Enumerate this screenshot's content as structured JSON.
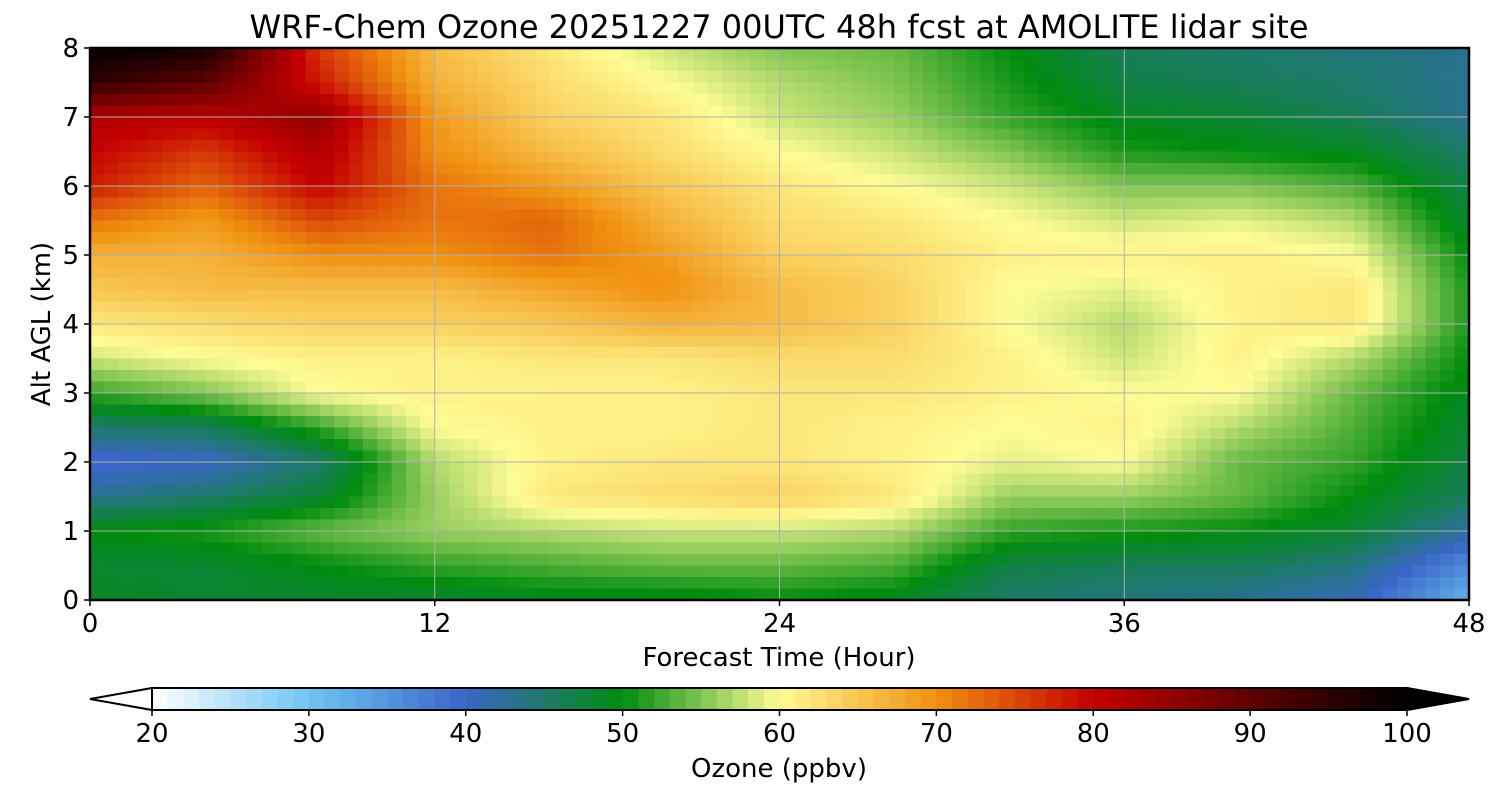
{
  "chart_data": {
    "type": "heatmap",
    "title": "WRF-Chem Ozone  20251227 00UTC 48h fcst at AMOLITE lidar site",
    "xlabel": "Forecast Time (Hour)",
    "ylabel": "Alt AGL (km)",
    "xlim": [
      0,
      48
    ],
    "ylim": [
      0,
      8
    ],
    "x_ticks": [
      0,
      12,
      24,
      36,
      48
    ],
    "y_ticks": [
      0,
      1,
      2,
      3,
      4,
      5,
      6,
      7,
      8
    ],
    "grid": true,
    "x": [
      0,
      4,
      8,
      12,
      16,
      20,
      24,
      28,
      32,
      36,
      40,
      44,
      48
    ],
    "y": [
      0,
      0.5,
      1,
      1.5,
      2,
      2.5,
      3,
      3.5,
      4,
      4.5,
      5,
      5.5,
      6,
      6.5,
      7,
      7.5,
      8
    ],
    "z": [
      [
        49,
        48,
        48,
        48,
        49,
        49,
        50,
        49,
        45,
        44,
        43,
        41,
        32
      ],
      [
        48,
        48,
        50,
        52,
        53,
        54,
        54,
        53,
        47,
        46,
        46,
        44,
        36
      ],
      [
        50,
        51,
        54,
        56,
        57,
        58,
        58,
        57,
        52,
        51,
        50,
        48,
        42
      ],
      [
        43,
        45,
        48,
        56,
        62,
        63,
        64,
        62,
        56,
        56,
        54,
        50,
        46
      ],
      [
        39,
        40,
        45,
        57,
        61,
        62,
        62,
        61,
        59,
        60,
        54,
        52,
        47
      ],
      [
        45,
        46,
        52,
        60,
        61,
        61,
        62,
        61,
        60,
        61,
        57,
        53,
        48
      ],
      [
        52,
        55,
        60,
        61,
        61,
        61,
        62,
        62,
        61,
        60,
        60,
        54,
        49
      ],
      [
        58,
        60,
        61,
        61,
        62,
        62,
        63,
        63,
        61,
        58,
        61,
        57,
        50
      ],
      [
        62,
        63,
        64,
        64,
        65,
        67,
        66,
        64,
        60,
        57,
        61,
        62,
        51
      ],
      [
        65,
        66,
        66,
        66,
        68,
        70,
        66,
        64,
        60,
        59,
        61,
        62,
        51
      ],
      [
        67,
        67,
        70,
        70,
        72,
        69,
        64,
        63,
        61,
        61,
        61,
        60,
        50
      ],
      [
        72,
        69,
        75,
        72,
        73,
        67,
        63,
        62,
        60,
        58,
        59,
        57,
        48
      ],
      [
        78,
        73,
        80,
        72,
        69,
        65,
        62,
        60,
        58,
        55,
        55,
        53,
        47
      ],
      [
        80,
        76,
        82,
        70,
        66,
        63,
        60,
        58,
        55,
        51,
        50,
        49,
        45
      ],
      [
        82,
        81,
        85,
        69,
        64,
        62,
        58,
        56,
        52,
        49,
        48,
        46,
        43
      ],
      [
        95,
        90,
        78,
        67,
        63,
        60,
        57,
        55,
        51,
        47,
        46,
        45,
        43
      ],
      [
        100,
        98,
        76,
        66,
        62,
        58,
        55,
        54,
        50,
        46,
        45,
        44,
        43
      ]
    ],
    "colorbar": {
      "label": "Ozone  (ppbv)",
      "min": 20,
      "max": 100,
      "extend": "both",
      "ticks": [
        20,
        30,
        40,
        50,
        60,
        70,
        80,
        90,
        100
      ]
    },
    "colormap_stops": [
      {
        "value": 20,
        "color": "#ffffff"
      },
      {
        "value": 30,
        "color": "#6ec5f2"
      },
      {
        "value": 40,
        "color": "#3a66c7"
      },
      {
        "value": 50,
        "color": "#008c0e"
      },
      {
        "value": 60,
        "color": "#fffc95"
      },
      {
        "value": 70,
        "color": "#f09010"
      },
      {
        "value": 80,
        "color": "#c40000"
      },
      {
        "value": 90,
        "color": "#5e0000"
      },
      {
        "value": 100,
        "color": "#000000"
      }
    ]
  }
}
